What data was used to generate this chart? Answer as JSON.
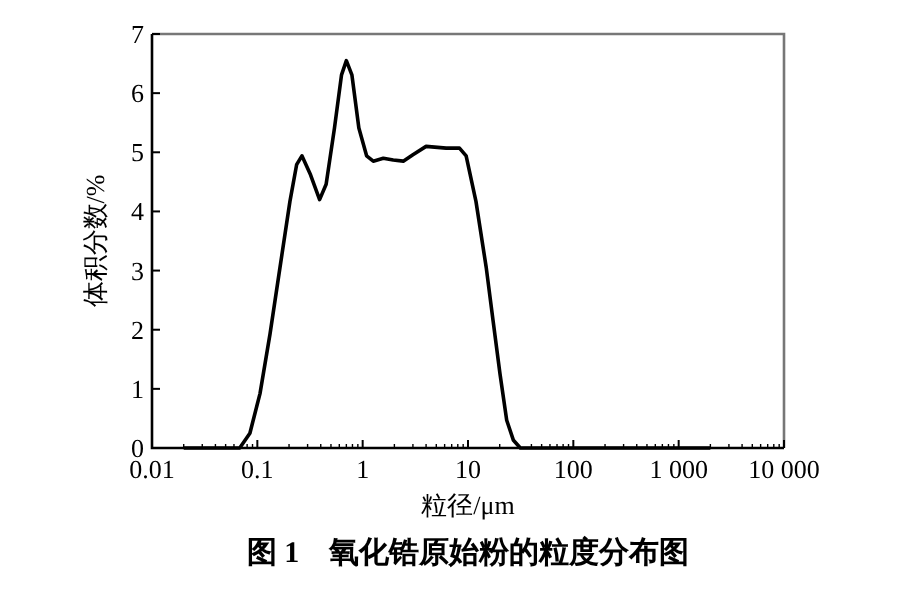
{
  "chart_data": {
    "type": "line",
    "title": "图 1　氧化锆原始粉的粒度分布图",
    "xlabel": "粒径/μm",
    "ylabel": "体积分数/%",
    "log": "x",
    "xlim": [
      0.01,
      10000
    ],
    "ylim": [
      0,
      7
    ],
    "xticks": [
      {
        "value": 0.01,
        "label": "0.01"
      },
      {
        "value": 0.1,
        "label": "0.1"
      },
      {
        "value": 1,
        "label": "1"
      },
      {
        "value": 10,
        "label": "10"
      },
      {
        "value": 100,
        "label": "100"
      },
      {
        "value": 1000,
        "label": "1 000"
      },
      {
        "value": 10000,
        "label": "10 000"
      }
    ],
    "yticks": [
      0,
      1,
      2,
      3,
      4,
      5,
      6,
      7
    ],
    "series": [
      {
        "color": "#000000",
        "x": [
          0.02,
          0.068,
          0.085,
          0.106,
          0.132,
          0.164,
          0.204,
          0.236,
          0.265,
          0.32,
          0.39,
          0.45,
          0.54,
          0.63,
          0.7,
          0.79,
          0.92,
          1.09,
          1.26,
          1.57,
          1.95,
          2.43,
          3.0,
          4.0,
          6.2,
          8.3,
          9.6,
          11.9,
          14.9,
          17.3,
          20.1,
          23.3,
          27,
          31.4,
          2000
        ],
        "values": [
          0,
          0,
          0.25,
          0.92,
          1.93,
          3.05,
          4.17,
          4.79,
          4.94,
          4.62,
          4.2,
          4.46,
          5.41,
          6.31,
          6.55,
          6.31,
          5.41,
          4.94,
          4.85,
          4.9,
          4.87,
          4.85,
          4.96,
          5.1,
          5.07,
          5.07,
          4.94,
          4.17,
          3.05,
          2.15,
          1.26,
          0.47,
          0.13,
          0,
          0
        ]
      }
    ]
  }
}
